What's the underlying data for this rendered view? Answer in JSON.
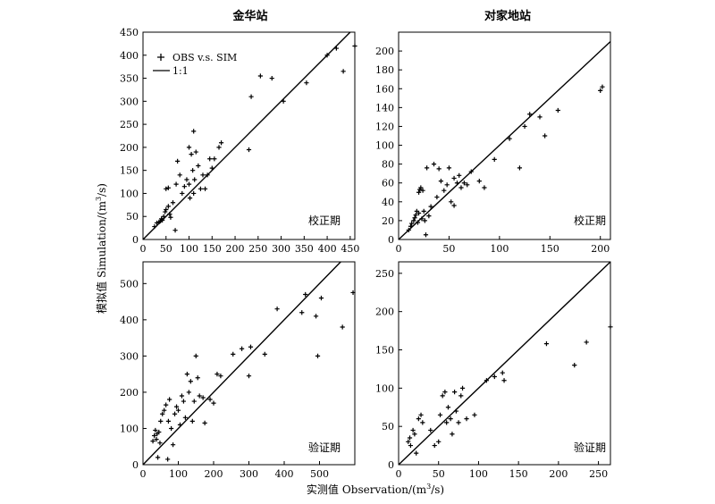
{
  "figure": {
    "ylabel_zh": "模拟值",
    "ylabel_en": "Simulation/(m",
    "ylabel_sup": "3",
    "ylabel_tail": "/s)",
    "xlabel_zh": "实测值",
    "xlabel_en": "Observation/(m",
    "xlabel_sup": "3",
    "xlabel_tail": "/s)"
  },
  "legend": {
    "obs_sim": "OBS v.s. SIM",
    "one_to_one": "1:1"
  },
  "chart_data": [
    {
      "id": "jinhua-calibration",
      "type": "scatter",
      "title": "金华站",
      "period_label": "校正期",
      "xlim": [
        0,
        460
      ],
      "ylim": [
        0,
        450
      ],
      "xticks": [
        0,
        50,
        100,
        150,
        200,
        250,
        300,
        350,
        400,
        450
      ],
      "yticks": [
        0,
        50,
        100,
        150,
        200,
        250,
        300,
        350,
        400,
        450
      ],
      "one_to_one": true,
      "legend": "top-left",
      "points": [
        [
          25,
          28
        ],
        [
          30,
          36
        ],
        [
          35,
          38
        ],
        [
          38,
          40
        ],
        [
          40,
          45
        ],
        [
          42,
          42
        ],
        [
          45,
          50
        ],
        [
          48,
          60
        ],
        [
          50,
          65
        ],
        [
          50,
          110
        ],
        [
          55,
          112
        ],
        [
          55,
          72
        ],
        [
          58,
          55
        ],
        [
          60,
          48
        ],
        [
          65,
          80
        ],
        [
          70,
          20
        ],
        [
          72,
          120
        ],
        [
          75,
          170
        ],
        [
          80,
          140
        ],
        [
          85,
          100
        ],
        [
          90,
          115
        ],
        [
          95,
          130
        ],
        [
          100,
          120
        ],
        [
          100,
          200
        ],
        [
          102,
          90
        ],
        [
          105,
          185
        ],
        [
          108,
          150
        ],
        [
          110,
          100
        ],
        [
          112,
          130
        ],
        [
          115,
          190
        ],
        [
          110,
          235
        ],
        [
          120,
          160
        ],
        [
          125,
          110
        ],
        [
          130,
          140
        ],
        [
          135,
          110
        ],
        [
          140,
          140
        ],
        [
          145,
          175
        ],
        [
          150,
          155
        ],
        [
          155,
          175
        ],
        [
          165,
          200
        ],
        [
          170,
          210
        ],
        [
          230,
          195
        ],
        [
          235,
          310
        ],
        [
          255,
          355
        ],
        [
          280,
          350
        ],
        [
          305,
          300
        ],
        [
          355,
          340
        ],
        [
          400,
          400
        ],
        [
          420,
          415
        ],
        [
          435,
          365
        ],
        [
          460,
          420
        ]
      ]
    },
    {
      "id": "duijiadi-calibration",
      "type": "scatter",
      "title": "对家地站",
      "period_label": "校正期",
      "xlim": [
        0,
        210
      ],
      "ylim": [
        0,
        220
      ],
      "xticks": [
        0,
        50,
        100,
        150,
        200
      ],
      "yticks": [
        0,
        20,
        40,
        60,
        80,
        100,
        120,
        140,
        160,
        180,
        200
      ],
      "one_to_one": true,
      "points": [
        [
          10,
          10
        ],
        [
          12,
          14
        ],
        [
          13,
          17
        ],
        [
          15,
          20
        ],
        [
          16,
          23
        ],
        [
          17,
          26
        ],
        [
          18,
          30
        ],
        [
          19,
          18
        ],
        [
          20,
          28
        ],
        [
          20,
          50
        ],
        [
          21,
          53
        ],
        [
          22,
          55
        ],
        [
          23,
          22
        ],
        [
          24,
          52
        ],
        [
          25,
          30
        ],
        [
          26,
          20
        ],
        [
          27,
          5
        ],
        [
          28,
          76
        ],
        [
          30,
          25
        ],
        [
          32,
          35
        ],
        [
          35,
          80
        ],
        [
          38,
          45
        ],
        [
          40,
          75
        ],
        [
          42,
          62
        ],
        [
          45,
          52
        ],
        [
          48,
          58
        ],
        [
          50,
          76
        ],
        [
          52,
          40
        ],
        [
          55,
          36
        ],
        [
          55,
          65
        ],
        [
          58,
          60
        ],
        [
          60,
          68
        ],
        [
          62,
          55
        ],
        [
          65,
          60
        ],
        [
          68,
          58
        ],
        [
          72,
          72
        ],
        [
          80,
          62
        ],
        [
          85,
          55
        ],
        [
          95,
          85
        ],
        [
          110,
          107
        ],
        [
          120,
          76
        ],
        [
          125,
          120
        ],
        [
          130,
          133
        ],
        [
          140,
          130
        ],
        [
          145,
          110
        ],
        [
          158,
          137
        ],
        [
          200,
          158
        ],
        [
          202,
          162
        ]
      ]
    },
    {
      "id": "jinhua-validation",
      "type": "scatter",
      "period_label": "验证期",
      "xlim": [
        0,
        600
      ],
      "ylim": [
        0,
        560
      ],
      "xticks": [
        0,
        100,
        200,
        300,
        400,
        500
      ],
      "yticks": [
        0,
        100,
        200,
        300,
        400,
        500
      ],
      "one_to_one": true,
      "points": [
        [
          28,
          65
        ],
        [
          32,
          80
        ],
        [
          35,
          95
        ],
        [
          38,
          70
        ],
        [
          40,
          85
        ],
        [
          42,
          20
        ],
        [
          45,
          90
        ],
        [
          48,
          60
        ],
        [
          50,
          120
        ],
        [
          55,
          140
        ],
        [
          60,
          150
        ],
        [
          65,
          165
        ],
        [
          70,
          15
        ],
        [
          72,
          120
        ],
        [
          75,
          180
        ],
        [
          80,
          100
        ],
        [
          85,
          55
        ],
        [
          90,
          140
        ],
        [
          95,
          160
        ],
        [
          100,
          150
        ],
        [
          105,
          110
        ],
        [
          110,
          190
        ],
        [
          115,
          175
        ],
        [
          120,
          130
        ],
        [
          125,
          250
        ],
        [
          130,
          200
        ],
        [
          135,
          230
        ],
        [
          140,
          120
        ],
        [
          145,
          175
        ],
        [
          150,
          300
        ],
        [
          155,
          240
        ],
        [
          160,
          190
        ],
        [
          170,
          185
        ],
        [
          175,
          115
        ],
        [
          190,
          180
        ],
        [
          200,
          170
        ],
        [
          210,
          250
        ],
        [
          220,
          245
        ],
        [
          255,
          305
        ],
        [
          280,
          320
        ],
        [
          300,
          245
        ],
        [
          305,
          325
        ],
        [
          345,
          305
        ],
        [
          380,
          430
        ],
        [
          450,
          420
        ],
        [
          460,
          470
        ],
        [
          490,
          410
        ],
        [
          495,
          300
        ],
        [
          505,
          460
        ],
        [
          565,
          380
        ],
        [
          595,
          475
        ]
      ]
    },
    {
      "id": "duijiadi-validation",
      "type": "scatter",
      "period_label": "验证期",
      "xlim": [
        0,
        265
      ],
      "ylim": [
        0,
        265
      ],
      "xticks": [
        0,
        50,
        100,
        150,
        200,
        250
      ],
      "yticks": [
        0,
        50,
        100,
        150,
        200,
        250
      ],
      "one_to_one": true,
      "points": [
        [
          12,
          30
        ],
        [
          14,
          35
        ],
        [
          15,
          25
        ],
        [
          18,
          45
        ],
        [
          20,
          40
        ],
        [
          22,
          15
        ],
        [
          25,
          60
        ],
        [
          28,
          65
        ],
        [
          30,
          55
        ],
        [
          40,
          45
        ],
        [
          45,
          25
        ],
        [
          50,
          30
        ],
        [
          52,
          65
        ],
        [
          55,
          90
        ],
        [
          58,
          95
        ],
        [
          60,
          55
        ],
        [
          62,
          75
        ],
        [
          65,
          60
        ],
        [
          67,
          40
        ],
        [
          70,
          95
        ],
        [
          72,
          70
        ],
        [
          75,
          55
        ],
        [
          78,
          90
        ],
        [
          80,
          100
        ],
        [
          85,
          60
        ],
        [
          95,
          65
        ],
        [
          110,
          110
        ],
        [
          120,
          115
        ],
        [
          130,
          120
        ],
        [
          132,
          110
        ],
        [
          185,
          158
        ],
        [
          220,
          130
        ],
        [
          235,
          160
        ],
        [
          265,
          180
        ]
      ]
    }
  ]
}
